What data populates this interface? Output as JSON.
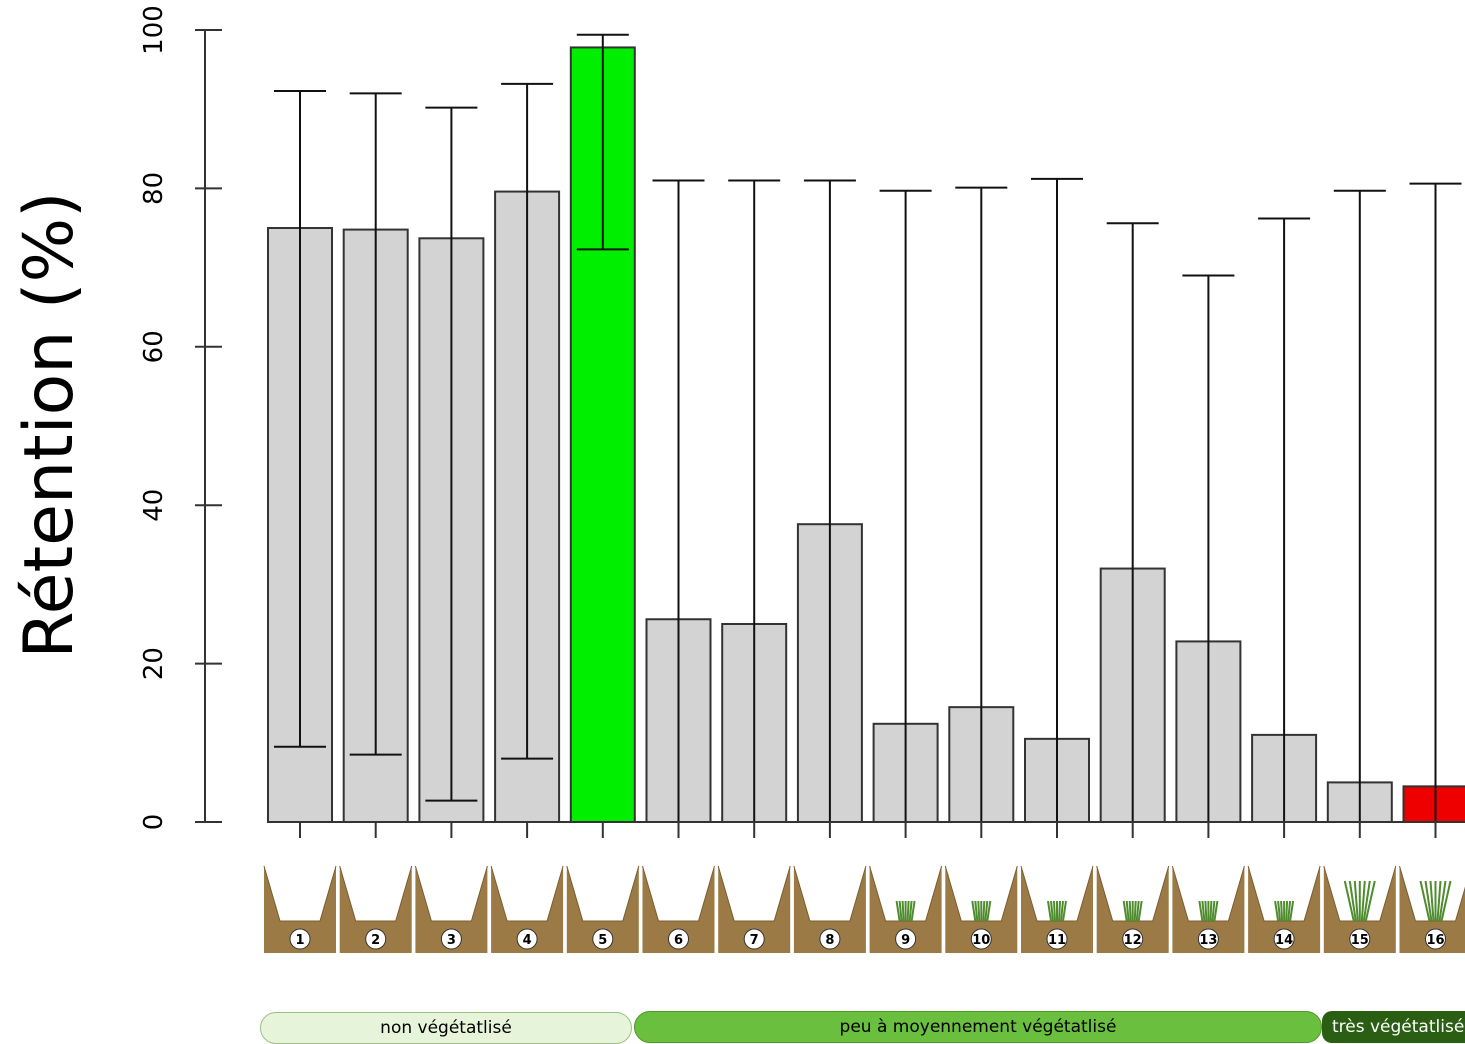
{
  "chart_data": {
    "type": "bar",
    "ylabel": "Rétention (%)",
    "ylim": [
      0,
      100
    ],
    "yticks": [
      0,
      20,
      40,
      60,
      80,
      100
    ],
    "categories": [
      "1",
      "2",
      "3",
      "4",
      "5",
      "6",
      "7",
      "8",
      "9",
      "10",
      "11",
      "12",
      "13",
      "14",
      "15",
      "16"
    ],
    "values": [
      75,
      74.8,
      73.7,
      79.6,
      97.8,
      25.6,
      25,
      37.6,
      12.4,
      14.5,
      10.5,
      32,
      22.8,
      11,
      5,
      4.5
    ],
    "error_low": [
      9.5,
      8.5,
      2.7,
      8,
      72.3,
      0,
      0,
      0,
      0,
      0,
      0,
      0,
      0,
      0,
      0,
      0
    ],
    "error_high": [
      92.3,
      92,
      90.2,
      93.2,
      99.4,
      81,
      81,
      81,
      79.7,
      80.1,
      81.2,
      75.6,
      69,
      76.2,
      79.7,
      80.6
    ],
    "colors": {
      "default": "#d3d3d3",
      "best": "#00ee00",
      "worst": "#ee0000",
      "bar_stroke": "#333333",
      "soil": "#9c7a45",
      "grass": "#4f8c2f"
    },
    "highlight": {
      "best_index": 4,
      "worst_index": 15
    },
    "groups": [
      {
        "label": "non végétatlisé",
        "color": "#e6f4d9",
        "text_color": "#000000"
      },
      {
        "label": "peu à moyennement végétatlisé",
        "color": "#6abf3f",
        "text_color": "#000000"
      },
      {
        "label": "très végétatlisé",
        "color": "#2a5e12",
        "text_color": "#ffffff"
      }
    ]
  }
}
